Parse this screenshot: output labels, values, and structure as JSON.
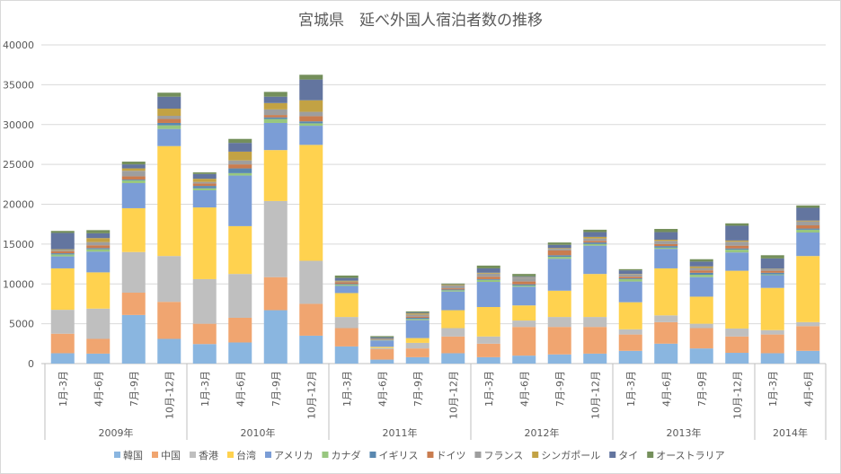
{
  "chart_data": {
    "type": "bar",
    "stacked": true,
    "title": "宮城県　延べ外国人宿泊者数の推移",
    "xlabel": "",
    "ylabel": "",
    "ylim": [
      0,
      40000
    ],
    "yticks": [
      0,
      5000,
      10000,
      15000,
      20000,
      25000,
      30000,
      35000,
      40000
    ],
    "grid": true,
    "legend_position": "bottom",
    "categories": [
      "1月-3月",
      "4月-6月",
      "7月-9月",
      "10月-12月",
      "1月-3月",
      "4月-6月",
      "7月-9月",
      "10月-12月",
      "1月-3月",
      "4月-6月",
      "7月-9月",
      "10月-12月",
      "1月-3月",
      "4月-6月",
      "7月-9月",
      "10月-12月",
      "1月-3月",
      "4月-6月",
      "7月-9月",
      "10月-12月",
      "1月-3月",
      "4月-6月"
    ],
    "groups": [
      {
        "label": "2009年",
        "count": 4
      },
      {
        "label": "2010年",
        "count": 4
      },
      {
        "label": "2011年",
        "count": 4
      },
      {
        "label": "2012年",
        "count": 4
      },
      {
        "label": "2013年",
        "count": 4
      },
      {
        "label": "2014年",
        "count": 2
      }
    ],
    "series": [
      {
        "name": "韓国",
        "color": "#8AB6E0",
        "values": [
          1300,
          1250,
          6100,
          3100,
          2450,
          2650,
          6700,
          3500,
          2150,
          500,
          800,
          1300,
          800,
          1000,
          1150,
          1250,
          1600,
          2500,
          1900,
          1350,
          1300,
          1600
        ]
      },
      {
        "name": "中国",
        "color": "#F0A570",
        "values": [
          2450,
          1850,
          2800,
          4650,
          2550,
          3100,
          4150,
          4000,
          2300,
          1300,
          1100,
          2100,
          1700,
          3600,
          3450,
          3350,
          2050,
          2700,
          2550,
          2050,
          2350,
          3100
        ]
      },
      {
        "name": "香港",
        "color": "#BFBFBF",
        "values": [
          3000,
          3800,
          5100,
          5750,
          5600,
          5500,
          9550,
          5400,
          1400,
          150,
          700,
          1050,
          900,
          800,
          1250,
          1250,
          650,
          850,
          550,
          1000,
          550,
          500
        ]
      },
      {
        "name": "台湾",
        "color": "#FFD24F",
        "values": [
          5200,
          4550,
          5500,
          13800,
          9000,
          6000,
          6400,
          14550,
          3000,
          150,
          600,
          2250,
          3700,
          1900,
          3300,
          5400,
          3400,
          5900,
          3400,
          7250,
          5300,
          8300
        ]
      },
      {
        "name": "アメリカ",
        "color": "#7B9DD6",
        "values": [
          1500,
          2600,
          3150,
          2150,
          2150,
          6350,
          3400,
          2400,
          900,
          800,
          2250,
          2350,
          3150,
          2350,
          4000,
          3550,
          2600,
          2450,
          2450,
          2300,
          1600,
          2950
        ]
      },
      {
        "name": "カナダ",
        "color": "#98C77F",
        "values": [
          250,
          300,
          350,
          450,
          250,
          300,
          500,
          300,
          150,
          50,
          150,
          150,
          250,
          150,
          250,
          200,
          300,
          150,
          300,
          350,
          100,
          350
        ]
      },
      {
        "name": "イギリス",
        "color": "#5A88B0",
        "values": [
          150,
          150,
          100,
          300,
          300,
          600,
          200,
          250,
          100,
          50,
          150,
          100,
          100,
          150,
          200,
          200,
          100,
          200,
          250,
          150,
          200,
          150
        ]
      },
      {
        "name": "ドイツ",
        "color": "#C97C4F",
        "values": [
          250,
          350,
          400,
          500,
          300,
          500,
          300,
          650,
          200,
          50,
          150,
          150,
          300,
          350,
          600,
          200,
          200,
          250,
          300,
          350,
          250,
          400
        ]
      },
      {
        "name": "フランス",
        "color": "#9E9E9E",
        "values": [
          150,
          400,
          700,
          400,
          200,
          500,
          700,
          550,
          100,
          50,
          250,
          350,
          400,
          500,
          200,
          300,
          300,
          400,
          300,
          500,
          200,
          500
        ]
      },
      {
        "name": "シンガポール",
        "color": "#C2A244",
        "values": [
          100,
          500,
          300,
          900,
          400,
          1100,
          800,
          1450,
          100,
          50,
          150,
          100,
          100,
          50,
          100,
          200,
          50,
          150,
          200,
          150,
          50,
          100
        ]
      },
      {
        "name": "タイ",
        "color": "#63759F",
        "values": [
          2050,
          600,
          500,
          1500,
          600,
          1100,
          800,
          2600,
          350,
          150,
          100,
          50,
          550,
          100,
          400,
          600,
          450,
          950,
          600,
          1850,
          1300,
          1600
        ]
      },
      {
        "name": "オーストラリア",
        "color": "#748F5B",
        "values": [
          250,
          400,
          350,
          500,
          200,
          500,
          600,
          600,
          300,
          150,
          150,
          100,
          350,
          300,
          300,
          300,
          150,
          400,
          300,
          300,
          400,
          300
        ]
      }
    ]
  }
}
